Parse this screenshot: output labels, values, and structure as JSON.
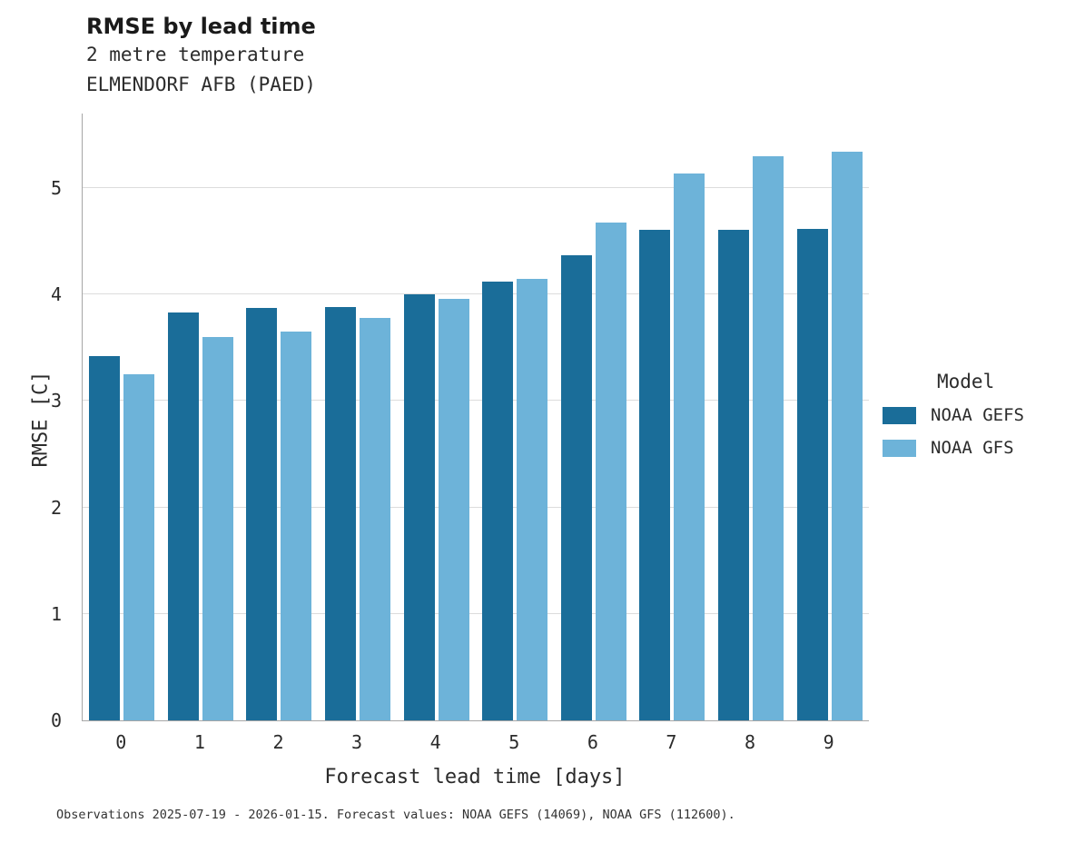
{
  "header": {
    "title": "RMSE by lead time",
    "subtitle1": "2 metre temperature",
    "subtitle2": "ELMENDORF AFB (PAED)"
  },
  "legend": {
    "title": "Model"
  },
  "caption": "Observations 2025-07-19 - 2026-01-15. Forecast values: NOAA GEFS (14069), NOAA GFS (112600).",
  "chart_data": {
    "type": "bar",
    "title": "RMSE by lead time",
    "subtitle": "2 metre temperature",
    "station": "ELMENDORF AFB (PAED)",
    "categories": [
      0,
      1,
      2,
      3,
      4,
      5,
      6,
      7,
      8,
      9
    ],
    "series": [
      {
        "name": "NOAA GEFS",
        "color": "#1a6d99",
        "values": [
          3.42,
          3.83,
          3.87,
          3.88,
          4.0,
          4.12,
          4.37,
          4.61,
          4.61,
          4.62
        ]
      },
      {
        "name": "NOAA GFS",
        "color": "#6db3d9",
        "values": [
          3.25,
          3.6,
          3.65,
          3.78,
          3.96,
          4.15,
          4.68,
          5.14,
          5.3,
          5.34
        ]
      }
    ],
    "xlabel": "Forecast lead time [days]",
    "ylabel": "RMSE [C]",
    "ylim": [
      0,
      5.7
    ],
    "yticks": [
      0,
      1,
      2,
      3,
      4,
      5
    ],
    "grid": "horizontal",
    "legend_position": "right",
    "legend_title": "Model"
  }
}
